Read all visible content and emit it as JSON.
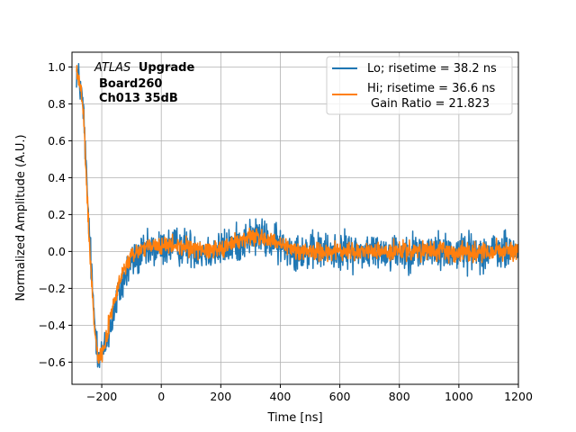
{
  "chart_data": {
    "type": "line",
    "xlabel": "Time [ns]",
    "ylabel": "Normalized Amplitude (A.U.)",
    "xlim": [
      -300,
      1200
    ],
    "ylim": [
      -0.72,
      1.08
    ],
    "xticks": [
      -200,
      0,
      200,
      400,
      600,
      800,
      1000,
      1200
    ],
    "yticks": [
      -0.6,
      -0.4,
      -0.2,
      0.0,
      0.2,
      0.4,
      0.6,
      0.8,
      1.0
    ],
    "xtick_labels": [
      "−200",
      "0",
      "200",
      "400",
      "600",
      "800",
      "1000",
      "1200"
    ],
    "ytick_labels": [
      "−0.6",
      "−0.4",
      "−0.2",
      "0.0",
      "0.2",
      "0.4",
      "0.6",
      "0.8",
      "1.0"
    ],
    "grid": true,
    "legend_position": "top-right",
    "annotation": {
      "experiment": "ATLAS",
      "suffix": "Upgrade",
      "line2": "Board260",
      "line3": "Ch013 35dB"
    },
    "series": [
      {
        "name": "Lo; risetime = 38.2 ns",
        "color": "#1f77b4",
        "noise": 0.05,
        "x": [
          -285,
          -280,
          -270,
          -260,
          -250,
          -240,
          -230,
          -220,
          -210,
          -200,
          -190,
          -180,
          -170,
          -160,
          -150,
          -140,
          -130,
          -120,
          -110,
          -100,
          -80,
          -60,
          -40,
          -20,
          0,
          50,
          100,
          150,
          200,
          250,
          300,
          330,
          360,
          400,
          450,
          500,
          600,
          700,
          800,
          900,
          1000,
          1100,
          1200
        ],
        "values": [
          0.98,
          0.95,
          0.88,
          0.72,
          0.35,
          0.05,
          -0.25,
          -0.45,
          -0.55,
          -0.56,
          -0.53,
          -0.47,
          -0.4,
          -0.33,
          -0.27,
          -0.22,
          -0.17,
          -0.13,
          -0.09,
          -0.06,
          -0.03,
          -0.01,
          0.0,
          0.01,
          0.02,
          0.03,
          0.02,
          0.0,
          0.01,
          0.04,
          0.08,
          0.08,
          0.06,
          0.03,
          0.01,
          0.0,
          0.0,
          0.0,
          0.0,
          0.0,
          0.0,
          0.0,
          0.0
        ]
      },
      {
        "name": "Hi; risetime = 36.6 ns",
        "name2": "Gain Ratio = 21.823",
        "color": "#ff7f0e",
        "noise": 0.025,
        "x": [
          -285,
          -280,
          -270,
          -260,
          -250,
          -240,
          -230,
          -220,
          -210,
          -200,
          -190,
          -180,
          -170,
          -160,
          -150,
          -140,
          -130,
          -120,
          -110,
          -100,
          -80,
          -60,
          -40,
          -20,
          0,
          50,
          100,
          150,
          200,
          250,
          300,
          330,
          360,
          400,
          450,
          500,
          600,
          700,
          800,
          900,
          1000,
          1100,
          1200
        ],
        "values": [
          0.98,
          0.95,
          0.88,
          0.7,
          0.32,
          0.02,
          -0.28,
          -0.48,
          -0.56,
          -0.55,
          -0.5,
          -0.43,
          -0.35,
          -0.28,
          -0.22,
          -0.17,
          -0.12,
          -0.08,
          -0.05,
          -0.03,
          0.0,
          0.02,
          0.02,
          0.03,
          0.03,
          0.03,
          0.02,
          0.01,
          0.02,
          0.05,
          0.08,
          0.08,
          0.06,
          0.03,
          0.01,
          0.0,
          0.0,
          0.0,
          0.0,
          0.0,
          0.0,
          0.0,
          0.0
        ]
      }
    ]
  }
}
